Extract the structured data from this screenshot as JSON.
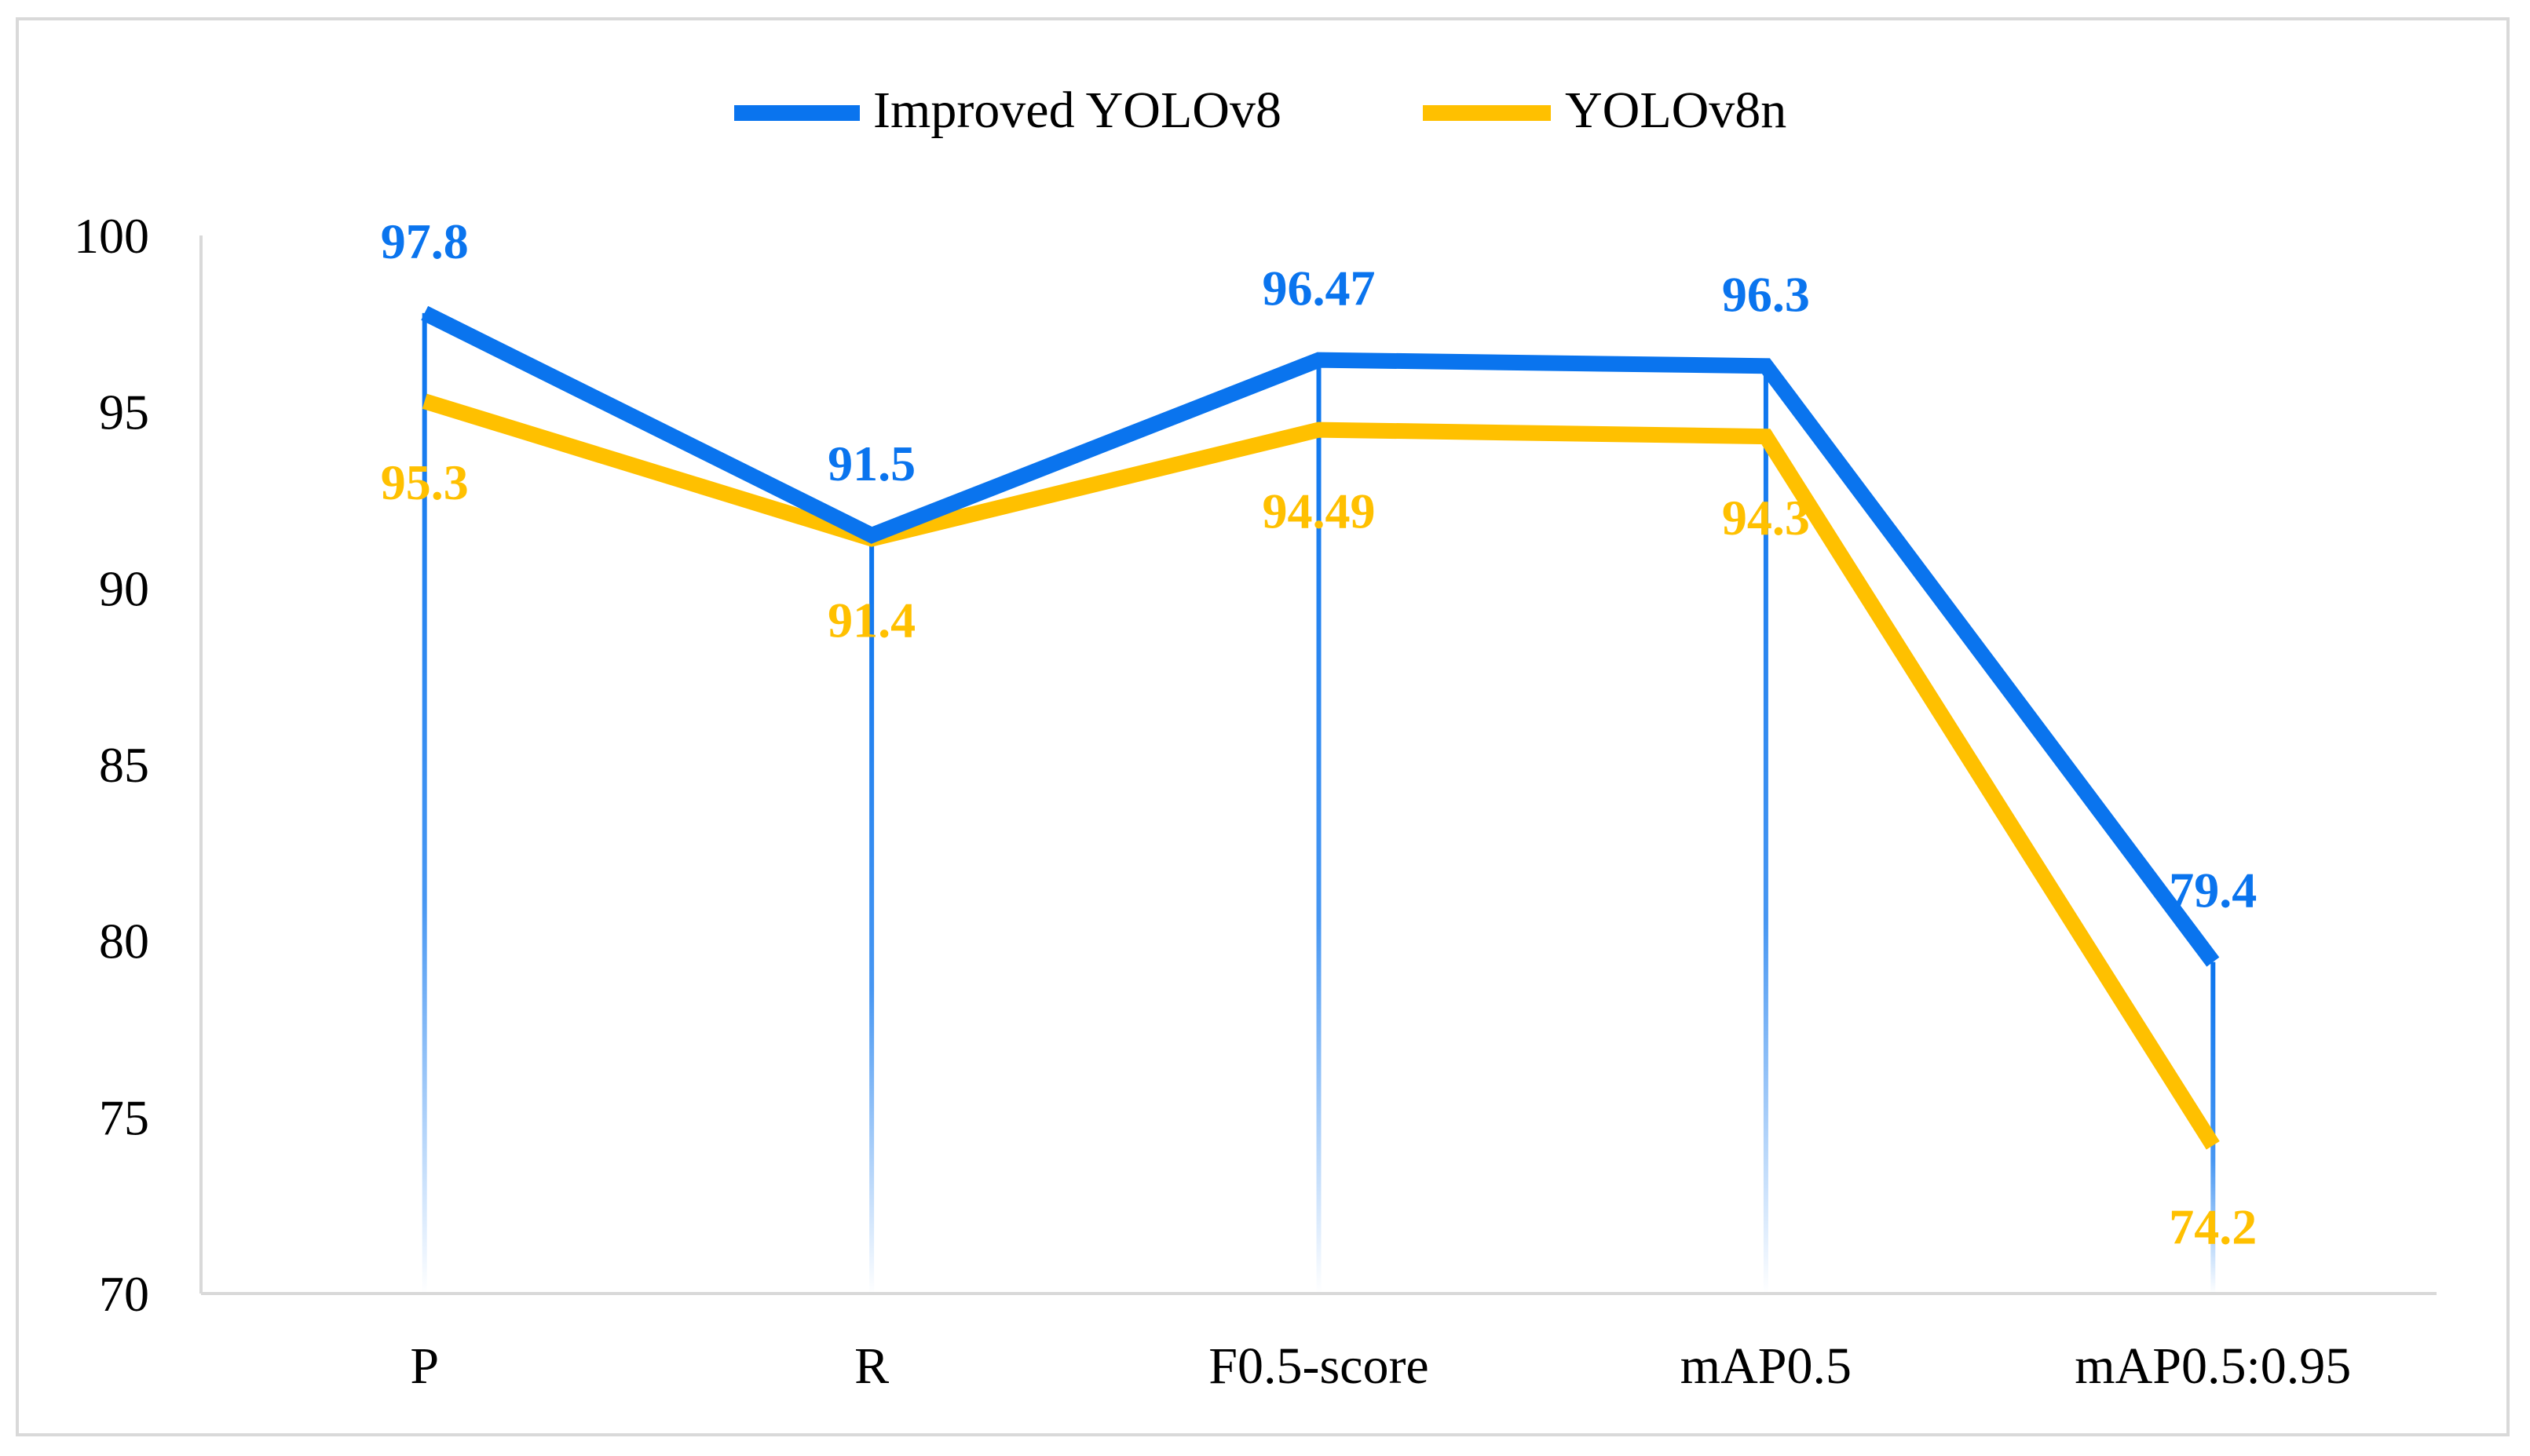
{
  "chart_data": {
    "type": "line",
    "title": "",
    "xlabel": "",
    "ylabel": "",
    "categories": [
      "P",
      "R",
      "F0.5-score",
      "mAP0.5",
      "mAP0.5:0.95"
    ],
    "ylim": [
      70,
      100
    ],
    "yticks": [
      70,
      75,
      80,
      85,
      90,
      95,
      100
    ],
    "grid": false,
    "legend_position": "top",
    "series": [
      {
        "name": "Improved YOLOv8",
        "color": "#0a74ee",
        "values": [
          97.8,
          91.5,
          96.47,
          96.3,
          79.4
        ],
        "labels": [
          "97.8",
          "91.5",
          "96.47",
          "96.3",
          "79.4"
        ]
      },
      {
        "name": "YOLOv8n",
        "color": "#ffc000",
        "values": [
          95.3,
          91.4,
          94.49,
          94.3,
          74.2
        ],
        "labels": [
          "95.3",
          "91.4",
          "94.49",
          "94.3",
          "74.2"
        ]
      }
    ]
  }
}
